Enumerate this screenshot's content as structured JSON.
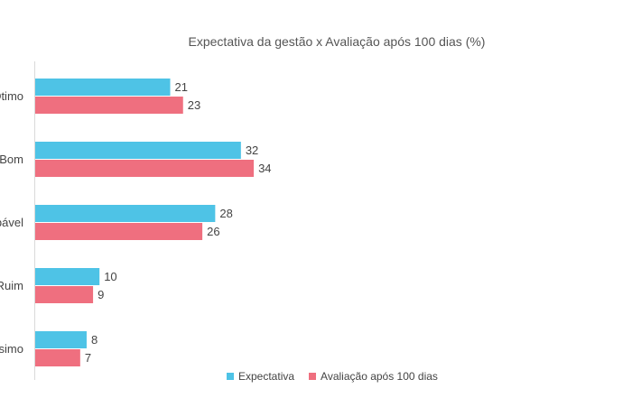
{
  "chart_data": {
    "type": "bar",
    "orientation": "horizontal",
    "title": "Expectativa da gestão x Avaliação após 100 dias (%)",
    "categories": [
      "Ótimo",
      "Bom",
      "Regular positivo / Aprovável",
      "Ruim",
      "Péssimo"
    ],
    "category_labels_visible": [
      "Ótimo",
      "Bom",
      "pável",
      "Ruim",
      "ssimo"
    ],
    "series": [
      {
        "name": "Expectativa",
        "values": [
          21,
          32,
          28,
          10,
          8
        ],
        "color": "#4ec3e6"
      },
      {
        "name": "Avaliação após 100 dias",
        "values": [
          23,
          34,
          26,
          9,
          7
        ],
        "color": "#ef6f7f"
      }
    ],
    "xlim": [
      0,
      100
    ],
    "grid": false,
    "legend_position": "bottom"
  }
}
